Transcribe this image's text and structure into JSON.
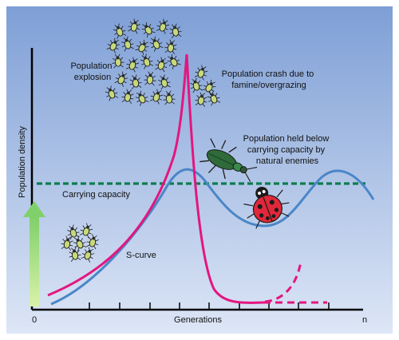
{
  "labels": {
    "population_explosion": [
      "Population",
      "explosion"
    ],
    "population_crash": [
      "Population crash due to",
      "famine/overgrazing"
    ],
    "held_below": [
      "Population held below",
      "carrying capacity by",
      "natural enemies"
    ],
    "carrying_capacity": "Carrying capacity",
    "s_curve": "S-curve"
  },
  "axes": {
    "y_label": "Population density",
    "x_label": "Generations",
    "x_start": "0",
    "x_end": "n"
  },
  "colors": {
    "background_top": "#7e9fd6",
    "background_bottom": "#dde6f6",
    "j_curve": "#e3167f",
    "s_curve": "#4a86c8",
    "carrying_capacity": "#0c7d4e",
    "arrow": "#a6e07a",
    "axis": "#000000"
  },
  "icons": [
    "aphid-swarm-icon",
    "ground-beetle-icon",
    "ladybird-icon",
    "growth-arrow-icon"
  ]
}
